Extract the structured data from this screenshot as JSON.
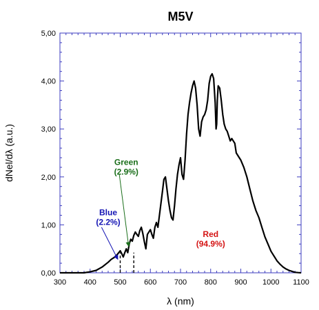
{
  "chart_data": {
    "type": "line",
    "title": "M5V",
    "xlabel": "λ (nm)",
    "ylabel": "dNel/dλ (a.u.)",
    "xlim": [
      300,
      1100
    ],
    "ylim": [
      0,
      5
    ],
    "x_ticks": [
      300,
      400,
      500,
      600,
      700,
      800,
      900,
      1000,
      1100
    ],
    "y_ticks": [
      0,
      1,
      2,
      3,
      4,
      5
    ],
    "y_tick_labels": [
      "0,00",
      "1,00",
      "2,00",
      "3,00",
      "4,00",
      "5,00"
    ],
    "grid": false,
    "series": [
      {
        "color": "#000000",
        "x": [
          300,
          380,
          400,
          420,
          440,
          460,
          470,
          480,
          490,
          495,
          500,
          505,
          510,
          515,
          520,
          525,
          530,
          535,
          540,
          545,
          550,
          555,
          560,
          565,
          570,
          575,
          580,
          585,
          590,
          595,
          600,
          605,
          610,
          615,
          620,
          625,
          630,
          635,
          640,
          645,
          650,
          655,
          660,
          665,
          670,
          675,
          680,
          685,
          690,
          695,
          700,
          705,
          710,
          715,
          720,
          725,
          730,
          735,
          740,
          745,
          750,
          755,
          760,
          765,
          770,
          775,
          780,
          785,
          790,
          795,
          800,
          805,
          810,
          815,
          818,
          820,
          822,
          825,
          830,
          835,
          840,
          845,
          850,
          855,
          860,
          865,
          870,
          875,
          880,
          885,
          890,
          895,
          900,
          910,
          920,
          930,
          940,
          950,
          960,
          970,
          980,
          990,
          1000,
          1010,
          1020,
          1030,
          1040,
          1050,
          1060,
          1070,
          1080,
          1090,
          1100
        ],
        "y": [
          0,
          0,
          0.02,
          0.05,
          0.12,
          0.22,
          0.28,
          0.32,
          0.38,
          0.42,
          0.46,
          0.4,
          0.33,
          0.42,
          0.5,
          0.42,
          0.6,
          0.7,
          0.66,
          0.78,
          0.85,
          0.8,
          0.76,
          0.88,
          0.95,
          0.82,
          0.65,
          0.5,
          0.8,
          0.85,
          0.9,
          0.8,
          0.72,
          0.95,
          1.05,
          0.95,
          1.2,
          1.45,
          1.7,
          1.95,
          2.0,
          1.75,
          1.5,
          1.3,
          1.15,
          1.1,
          1.4,
          1.75,
          2.05,
          2.25,
          2.4,
          2.05,
          1.95,
          2.35,
          2.9,
          3.3,
          3.55,
          3.75,
          3.9,
          4.0,
          3.85,
          3.5,
          3.0,
          2.85,
          3.15,
          3.25,
          3.3,
          3.4,
          3.6,
          3.95,
          4.1,
          4.15,
          4.05,
          3.55,
          3.0,
          3.1,
          3.6,
          3.9,
          3.85,
          3.6,
          3.3,
          3.1,
          3.0,
          2.95,
          2.85,
          2.75,
          2.8,
          2.75,
          2.7,
          2.5,
          2.45,
          2.4,
          2.35,
          2.2,
          2.0,
          1.75,
          1.5,
          1.3,
          1.15,
          0.95,
          0.75,
          0.6,
          0.45,
          0.35,
          0.25,
          0.18,
          0.12,
          0.08,
          0.05,
          0.03,
          0.01,
          0.005,
          0
        ]
      }
    ],
    "markers": [
      500,
      545
    ],
    "annotations": [
      {
        "label": "Green",
        "value": "(2.9%)",
        "color": "#1a6e1a",
        "tx": 520,
        "ty": 2.25,
        "arrow_from": [
          497,
          2.05
        ],
        "arrow_to": [
          528,
          0.55
        ]
      },
      {
        "label": "Blue",
        "value": "(2.2%)",
        "color": "#1414b4",
        "tx": 460,
        "ty": 1.2,
        "arrow_from": [
          438,
          0.95
        ],
        "arrow_to": [
          492,
          0.28
        ]
      },
      {
        "label": "Red",
        "value": "(94.9%)",
        "color": "#d41414",
        "tx": 800,
        "ty": 0.75
      }
    ]
  }
}
